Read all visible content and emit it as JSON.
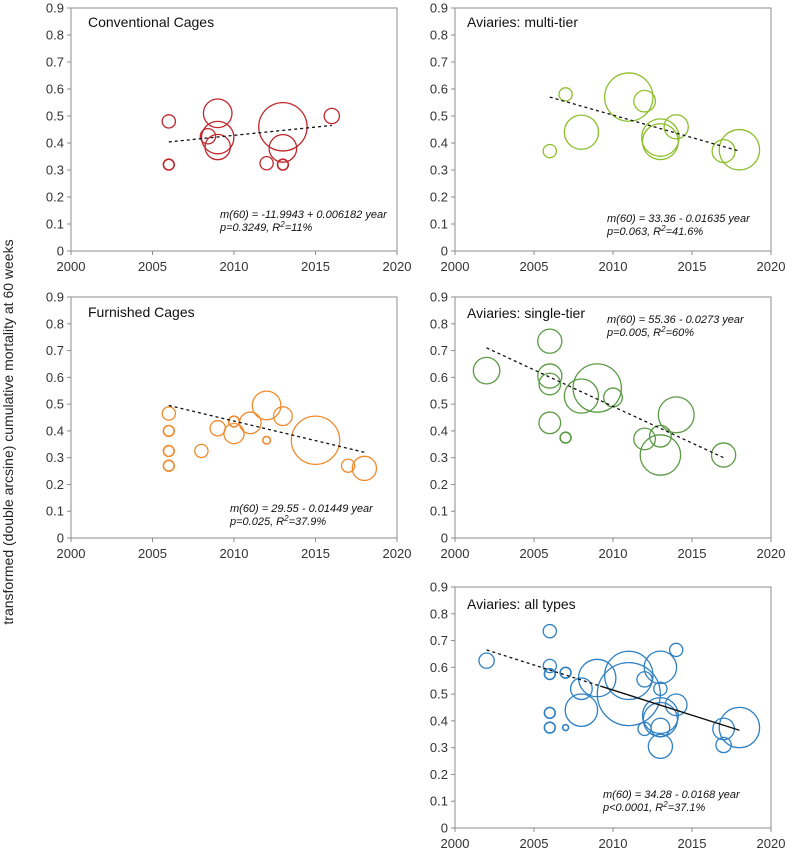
{
  "y_axis_title": "transformed (double arcsine) cumulative mortality at 60 weeks",
  "chart_data": [
    {
      "type": "scatter",
      "title": "Conventional Cages",
      "color": "#c0262b",
      "xlim": [
        2000,
        2020
      ],
      "ylim": [
        0,
        0.9
      ],
      "xticks": [
        "2000",
        "2005",
        "2010",
        "2015",
        "2020"
      ],
      "yticks": [
        "0",
        "0.1",
        "0.2",
        "0.3",
        "0.4",
        "0.5",
        "0.6",
        "0.7",
        "0.8",
        "0.9"
      ],
      "equation": "m(60) = -11.9943 + 0.006182 year",
      "stats": {
        "p": "p=0.3249, ",
        "r2_prefix": "R",
        "r2_value": "=11%"
      },
      "trend": {
        "x": [
          2006,
          2016
        ],
        "y": [
          0.404,
          0.465
        ],
        "style": "dashed"
      },
      "points": [
        {
          "x": 2006,
          "y": 0.48,
          "size": 1.5
        },
        {
          "x": 2006,
          "y": 0.32,
          "size": 1
        },
        {
          "x": 2008.4,
          "y": 0.425,
          "size": 2
        },
        {
          "x": 2009,
          "y": 0.51,
          "size": 7
        },
        {
          "x": 2009,
          "y": 0.42,
          "size": 9
        },
        {
          "x": 2009,
          "y": 0.385,
          "size": 5.5
        },
        {
          "x": 2012,
          "y": 0.325,
          "size": 1.5
        },
        {
          "x": 2013,
          "y": 0.46,
          "size": 20
        },
        {
          "x": 2013,
          "y": 0.38,
          "size": 6.5
        },
        {
          "x": 2013,
          "y": 0.32,
          "size": 1
        },
        {
          "x": 2016,
          "y": 0.5,
          "size": 2
        }
      ]
    },
    {
      "type": "scatter",
      "title": "Aviaries: multi-tier",
      "color": "#8cbf2c",
      "xlim": [
        2000,
        2020
      ],
      "ylim": [
        0,
        0.9
      ],
      "xticks": [
        "2000",
        "2005",
        "2010",
        "2015",
        "2020"
      ],
      "yticks": [
        "0",
        "0.1",
        "0.2",
        "0.3",
        "0.4",
        "0.5",
        "0.6",
        "0.7",
        "0.8",
        "0.9"
      ],
      "equation": "m(60) = 33.36 - 0.01635 year",
      "stats": {
        "p": "p=0.063, ",
        "r2_prefix": "R",
        "r2_value": "=41.6%"
      },
      "trend": {
        "x": [
          2006,
          2018
        ],
        "y": [
          0.57,
          0.37
        ],
        "style": "dashed"
      },
      "points": [
        {
          "x": 2006,
          "y": 0.37,
          "size": 1.5
        },
        {
          "x": 2007,
          "y": 0.58,
          "size": 1.5
        },
        {
          "x": 2008,
          "y": 0.44,
          "size": 10
        },
        {
          "x": 2011,
          "y": 0.57,
          "size": 20
        },
        {
          "x": 2012,
          "y": 0.555,
          "size": 4
        },
        {
          "x": 2013,
          "y": 0.42,
          "size": 12
        },
        {
          "x": 2013,
          "y": 0.405,
          "size": 11
        },
        {
          "x": 2014,
          "y": 0.46,
          "size": 5
        },
        {
          "x": 2017,
          "y": 0.37,
          "size": 4.5
        },
        {
          "x": 2018,
          "y": 0.375,
          "size": 14
        }
      ]
    },
    {
      "type": "scatter",
      "title": "Furnished Cages",
      "color": "#f08a2a",
      "xlim": [
        2000,
        2020
      ],
      "ylim": [
        0,
        0.9
      ],
      "xticks": [
        "2000",
        "2005",
        "2010",
        "2015",
        "2020"
      ],
      "yticks": [
        "0",
        "0.1",
        "0.2",
        "0.3",
        "0.4",
        "0.5",
        "0.6",
        "0.7",
        "0.8",
        "0.9"
      ],
      "equation": "m(60) =  29.55 - 0.01449 year",
      "stats": {
        "p": "p=0.025, ",
        "r2_prefix": "R",
        "r2_value": "=37.9%"
      },
      "trend": {
        "x": [
          2006,
          2018
        ],
        "y": [
          0.495,
          0.32
        ],
        "style": "dashed"
      },
      "points": [
        {
          "x": 2006,
          "y": 0.465,
          "size": 1.5
        },
        {
          "x": 2006,
          "y": 0.4,
          "size": 1
        },
        {
          "x": 2006,
          "y": 0.325,
          "size": 1
        },
        {
          "x": 2006,
          "y": 0.27,
          "size": 1
        },
        {
          "x": 2008,
          "y": 0.325,
          "size": 1.5
        },
        {
          "x": 2009,
          "y": 0.41,
          "size": 2
        },
        {
          "x": 2010,
          "y": 0.39,
          "size": 3.5
        },
        {
          "x": 2010,
          "y": 0.435,
          "size": 1
        },
        {
          "x": 2011,
          "y": 0.43,
          "size": 4
        },
        {
          "x": 2012,
          "y": 0.495,
          "size": 7
        },
        {
          "x": 2012,
          "y": 0.365,
          "size": 0.5
        },
        {
          "x": 2013,
          "y": 0.455,
          "size": 3
        },
        {
          "x": 2015,
          "y": 0.365,
          "size": 20
        },
        {
          "x": 2017,
          "y": 0.27,
          "size": 1.5
        },
        {
          "x": 2018,
          "y": 0.26,
          "size": 5
        }
      ]
    },
    {
      "type": "scatter",
      "title": "Aviaries: single-tier",
      "color": "#5a9a44",
      "xlim": [
        2000,
        2020
      ],
      "ylim": [
        0,
        0.9
      ],
      "xticks": [
        "2000",
        "2005",
        "2010",
        "2015",
        "2020"
      ],
      "yticks": [
        "0",
        "0.1",
        "0.2",
        "0.3",
        "0.4",
        "0.5",
        "0.6",
        "0.7",
        "0.8",
        "0.9"
      ],
      "equation": "m(60) = 55.36 - 0.0273 year",
      "stats": {
        "p": "p=0.005, ",
        "r2_prefix": "R",
        "r2_value": "=60%"
      },
      "trend": {
        "x": [
          2002,
          2017
        ],
        "y": [
          0.71,
          0.3
        ],
        "style": "dashed"
      },
      "points": [
        {
          "x": 2002,
          "y": 0.625,
          "size": 6
        },
        {
          "x": 2006,
          "y": 0.735,
          "size": 5
        },
        {
          "x": 2006,
          "y": 0.605,
          "size": 5
        },
        {
          "x": 2006,
          "y": 0.575,
          "size": 4
        },
        {
          "x": 2006,
          "y": 0.43,
          "size": 4
        },
        {
          "x": 2007,
          "y": 0.375,
          "size": 1
        },
        {
          "x": 2008,
          "y": 0.53,
          "size": 10
        },
        {
          "x": 2009,
          "y": 0.56,
          "size": 20
        },
        {
          "x": 2010,
          "y": 0.525,
          "size": 3
        },
        {
          "x": 2012,
          "y": 0.37,
          "size": 4
        },
        {
          "x": 2013,
          "y": 0.38,
          "size": 4
        },
        {
          "x": 2013,
          "y": 0.31,
          "size": 14
        },
        {
          "x": 2014,
          "y": 0.46,
          "size": 11
        },
        {
          "x": 2017,
          "y": 0.31,
          "size": 5
        }
      ]
    },
    {
      "type": "scatter",
      "title": "Aviaries: all types",
      "color": "#2e80c2",
      "xlim": [
        2000,
        2020
      ],
      "ylim": [
        0,
        0.9
      ],
      "xticks": [
        "2000",
        "2005",
        "2010",
        "2015",
        "2020"
      ],
      "yticks": [
        "0",
        "0.1",
        "0.2",
        "0.3",
        "0.4",
        "0.5",
        "0.6",
        "0.7",
        "0.8",
        "0.9"
      ],
      "equation": "m(60) = 34.28 - 0.0168 year",
      "stats": {
        "p": "p<0.0001, ",
        "r2_prefix": "R",
        "r2_value": "=37.1%"
      },
      "trend": {
        "x": [
          2002,
          2018
        ],
        "y": [
          0.665,
          0.365
        ],
        "style": "dashed-then-solid"
      },
      "points": [
        {
          "x": 2002,
          "y": 0.625,
          "size": 2
        },
        {
          "x": 2006,
          "y": 0.735,
          "size": 1.5
        },
        {
          "x": 2006,
          "y": 0.605,
          "size": 1.5
        },
        {
          "x": 2006,
          "y": 0.575,
          "size": 1
        },
        {
          "x": 2006,
          "y": 0.43,
          "size": 1
        },
        {
          "x": 2006,
          "y": 0.375,
          "size": 1
        },
        {
          "x": 2007,
          "y": 0.375,
          "size": 0.3
        },
        {
          "x": 2007,
          "y": 0.58,
          "size": 1
        },
        {
          "x": 2008,
          "y": 0.52,
          "size": 4
        },
        {
          "x": 2008,
          "y": 0.44,
          "size": 9
        },
        {
          "x": 2009,
          "y": 0.56,
          "size": 12
        },
        {
          "x": 2011,
          "y": 0.57,
          "size": 20
        },
        {
          "x": 2011,
          "y": 0.5,
          "size": 34
        },
        {
          "x": 2012,
          "y": 0.555,
          "size": 2
        },
        {
          "x": 2012,
          "y": 0.37,
          "size": 1.5
        },
        {
          "x": 2013,
          "y": 0.6,
          "size": 9
        },
        {
          "x": 2013,
          "y": 0.52,
          "size": 1.5
        },
        {
          "x": 2013,
          "y": 0.42,
          "size": 11
        },
        {
          "x": 2013,
          "y": 0.405,
          "size": 10
        },
        {
          "x": 2013,
          "y": 0.375,
          "size": 3
        },
        {
          "x": 2013,
          "y": 0.305,
          "size": 5
        },
        {
          "x": 2014,
          "y": 0.665,
          "size": 1.5
        },
        {
          "x": 2014,
          "y": 0.46,
          "size": 4
        },
        {
          "x": 2017,
          "y": 0.37,
          "size": 4
        },
        {
          "x": 2017,
          "y": 0.31,
          "size": 2
        },
        {
          "x": 2018,
          "y": 0.375,
          "size": 14
        }
      ]
    }
  ]
}
